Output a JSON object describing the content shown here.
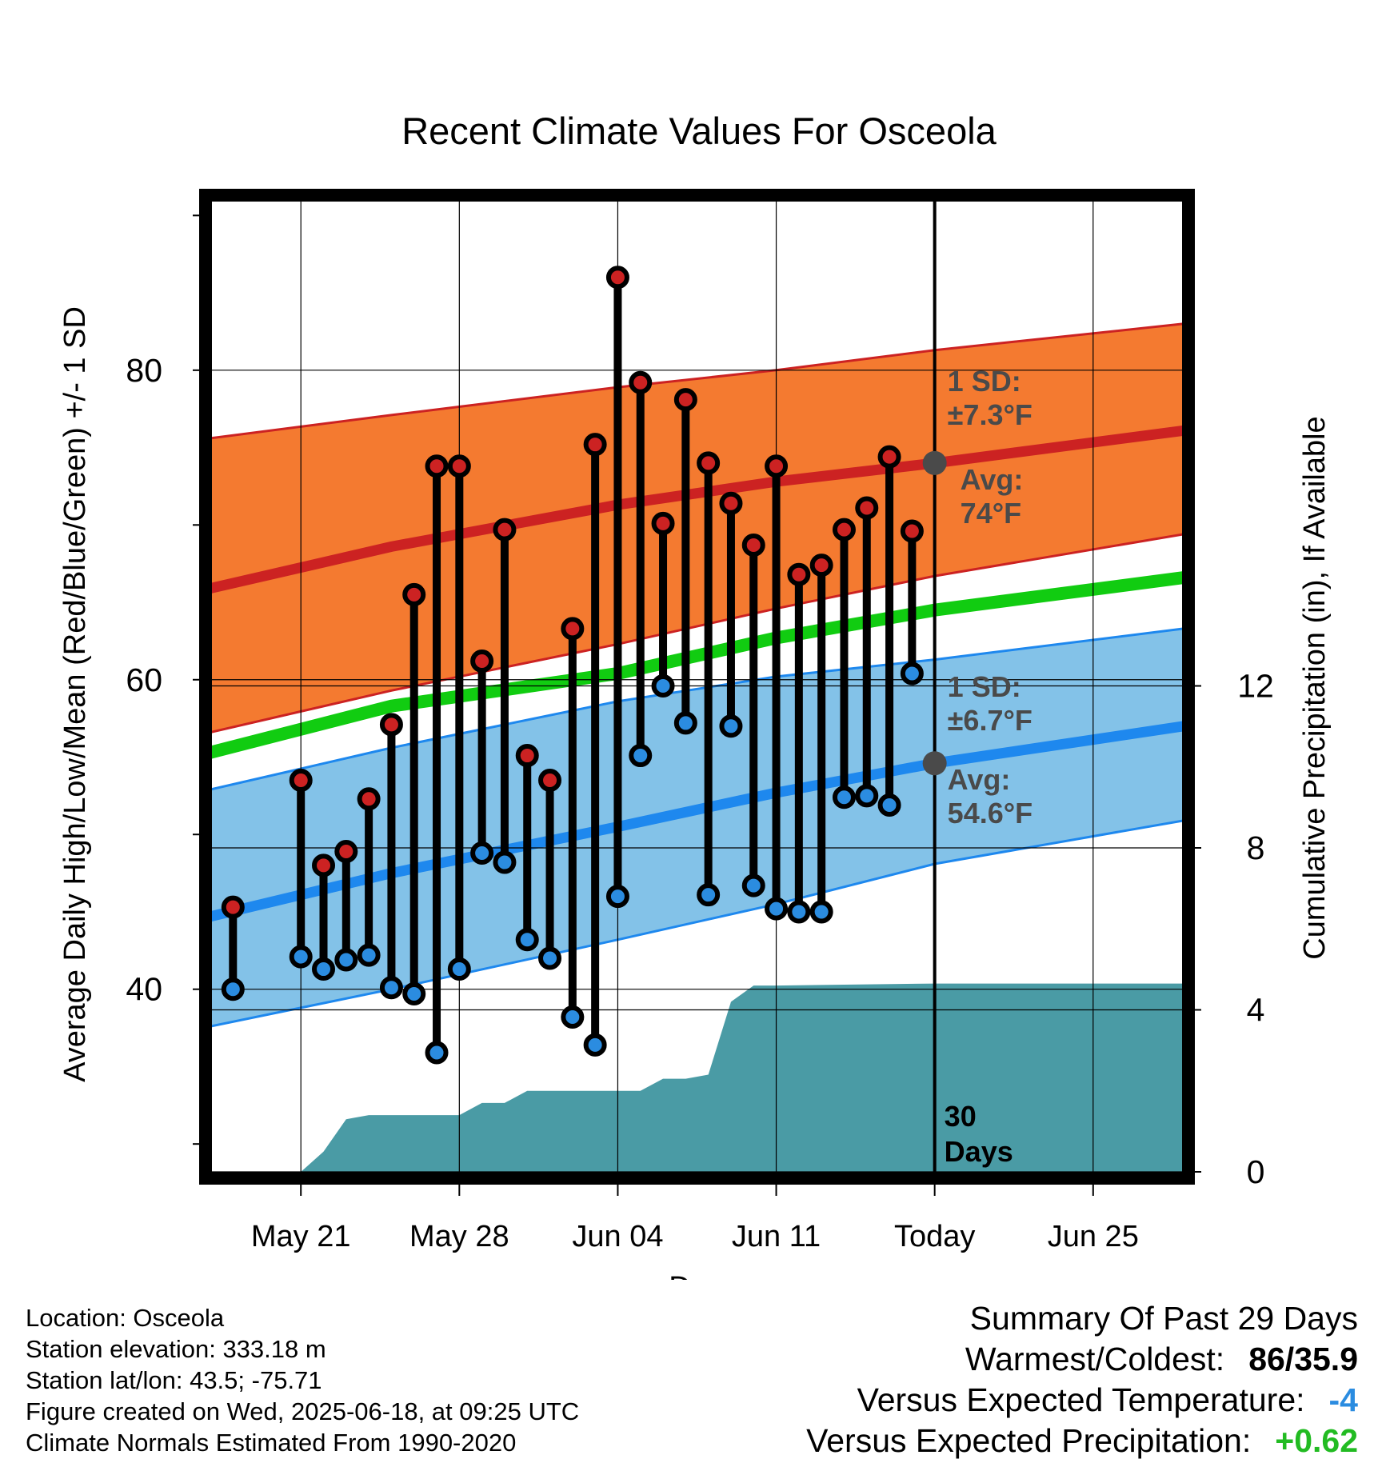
{
  "chart_data": {
    "type": "line",
    "title": "Recent Climate Values For Osceola",
    "xlabel": "Day",
    "ylabel": "Average Daily High/Low/Mean (Red/Blue/Green) +/- 1 SD",
    "y2label": "Cumulative Precipitation (in), If Available",
    "xlim": [
      "2025-05-17",
      "2025-06-29"
    ],
    "ylim": [
      28.2,
      91
    ],
    "y2lim": [
      0,
      24
    ],
    "x_ticks": [
      {
        "date": "2025-05-21",
        "label": "May 21"
      },
      {
        "date": "2025-05-28",
        "label": "May 28"
      },
      {
        "date": "2025-06-04",
        "label": "Jun 04"
      },
      {
        "date": "2025-06-11",
        "label": "Jun 11"
      },
      {
        "date": "2025-06-18",
        "label": "Today"
      },
      {
        "date": "2025-06-25",
        "label": "Jun 25"
      }
    ],
    "y_ticks": [
      40,
      60,
      80
    ],
    "y2_ticks": [
      0,
      4,
      8,
      12
    ],
    "grid": true,
    "normals": {
      "dates": [
        "2025-05-17",
        "2025-05-25",
        "2025-06-04",
        "2025-06-11",
        "2025-06-18",
        "2025-06-29"
      ],
      "high_avg": [
        65.9,
        68.6,
        71.3,
        72.8,
        74.0,
        76.1
      ],
      "high_upper": [
        75.6,
        77.1,
        78.9,
        80.0,
        81.3,
        83.0
      ],
      "high_lower": [
        56.6,
        59.3,
        62.3,
        64.6,
        66.7,
        69.4
      ],
      "mean_avg": [
        55.3,
        58.3,
        60.4,
        62.7,
        64.5,
        66.6
      ],
      "low_avg": [
        44.7,
        47.5,
        50.5,
        52.7,
        54.6,
        57.0
      ],
      "low_upper": [
        52.9,
        55.6,
        58.6,
        60.2,
        61.3,
        63.3
      ],
      "low_lower": [
        37.6,
        40.0,
        43.2,
        45.5,
        48.1,
        50.9
      ]
    },
    "series": [
      {
        "name": "High",
        "color": "#cc2222",
        "dates": [
          "2025-05-18",
          "2025-05-21",
          "2025-05-22",
          "2025-05-23",
          "2025-05-24",
          "2025-05-25",
          "2025-05-26",
          "2025-05-27",
          "2025-05-28",
          "2025-05-29",
          "2025-05-30",
          "2025-05-31",
          "2025-06-01",
          "2025-06-02",
          "2025-06-03",
          "2025-06-04",
          "2025-06-05",
          "2025-06-06",
          "2025-06-07",
          "2025-06-08",
          "2025-06-09",
          "2025-06-10",
          "2025-06-11",
          "2025-06-12",
          "2025-06-13",
          "2025-06-14",
          "2025-06-15",
          "2025-06-16",
          "2025-06-17"
        ],
        "values": [
          45.3,
          53.5,
          48.0,
          48.9,
          52.3,
          57.1,
          65.5,
          73.8,
          73.8,
          61.2,
          69.7,
          55.1,
          53.5,
          63.3,
          75.2,
          86.0,
          79.2,
          70.1,
          78.1,
          74.0,
          71.4,
          68.7,
          73.8,
          66.8,
          67.4,
          69.7,
          71.1,
          74.4,
          69.6
        ]
      },
      {
        "name": "Low",
        "color": "#2b8ce0",
        "dates": [
          "2025-05-18",
          "2025-05-21",
          "2025-05-22",
          "2025-05-23",
          "2025-05-24",
          "2025-05-25",
          "2025-05-26",
          "2025-05-27",
          "2025-05-28",
          "2025-05-29",
          "2025-05-30",
          "2025-05-31",
          "2025-06-01",
          "2025-06-02",
          "2025-06-03",
          "2025-06-04",
          "2025-06-05",
          "2025-06-06",
          "2025-06-07",
          "2025-06-08",
          "2025-06-09",
          "2025-06-10",
          "2025-06-11",
          "2025-06-12",
          "2025-06-13",
          "2025-06-14",
          "2025-06-15",
          "2025-06-16",
          "2025-06-17"
        ],
        "values": [
          40.0,
          42.1,
          41.3,
          41.9,
          42.2,
          40.1,
          39.7,
          35.9,
          41.3,
          48.8,
          48.2,
          43.2,
          42.0,
          38.2,
          36.4,
          46.0,
          55.1,
          59.6,
          57.2,
          46.1,
          57.0,
          46.7,
          45.2,
          45.0,
          45.0,
          52.4,
          52.5,
          51.9,
          60.4
        ]
      }
    ],
    "precip": {
      "dates": [
        "2025-05-17",
        "2025-05-20",
        "2025-05-21",
        "2025-05-22",
        "2025-05-23",
        "2025-05-24",
        "2025-05-25",
        "2025-05-26",
        "2025-05-27",
        "2025-05-28",
        "2025-05-29",
        "2025-05-30",
        "2025-05-31",
        "2025-06-01",
        "2025-06-02",
        "2025-06-03",
        "2025-06-04",
        "2025-06-05",
        "2025-06-06",
        "2025-06-07",
        "2025-06-08",
        "2025-06-09",
        "2025-06-10",
        "2025-06-11",
        "2025-06-18",
        "2025-06-29"
      ],
      "values": [
        0,
        0,
        0,
        0.5,
        1.3,
        1.4,
        1.4,
        1.4,
        1.4,
        1.4,
        1.7,
        1.7,
        2.0,
        2.0,
        2.0,
        2.0,
        2.0,
        2.0,
        2.3,
        2.3,
        2.4,
        4.2,
        4.6,
        4.6,
        4.65,
        4.65
      ],
      "color": "#4a9ba5"
    },
    "today_marker": {
      "date": "2025-06-18",
      "label": "30 Days",
      "high_avg": 74.0,
      "low_avg": 54.6
    },
    "annotations": {
      "high_sd": "1 SD: ±7.3°F",
      "high_avg": "Avg: 74°F",
      "low_sd": "1 SD: ±6.7°F",
      "low_avg": "Avg: 54.6°F"
    },
    "colors": {
      "high_band": "#f47a30",
      "high_line": "#cc2222",
      "mean_line": "#11cc11",
      "low_band": "#83c2e8",
      "low_line": "#1e88ee",
      "annotation": "#4a4a4a"
    }
  },
  "footer": {
    "location": "Location: Osceola",
    "elevation": "Station elevation: 333.18 m",
    "latlon": "Station lat/lon: 43.5; -75.71",
    "created": "Figure created on Wed, 2025-06-18, at 09:25 UTC",
    "normals": "Climate Normals Estimated From 1990-2020"
  },
  "summary": {
    "title": "Summary Of Past 29 Days",
    "warmest_label": "Warmest/Coldest:",
    "warmest_value": "86/35.9",
    "temp_label": "Versus Expected Temperature:",
    "temp_value": "-4",
    "temp_color": "#2b8ce0",
    "precip_label": "Versus Expected Precipitation:",
    "precip_value": "+0.62",
    "precip_color": "#22bb22"
  }
}
